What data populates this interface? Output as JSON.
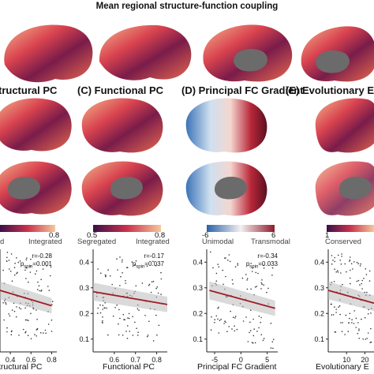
{
  "figure": {
    "title": "Mean regional structure-function coupling"
  },
  "colors": {
    "coupling_low": "#3b0f48",
    "coupling_mid": "#c9324e",
    "coupling_high": "#f6c79a",
    "gradient_low": "#2a61a8",
    "gradient_high": "#8e1b2a",
    "cortex_gray": "#6b6b6b"
  },
  "panels": [
    {
      "letter": "",
      "title": "tructural PC",
      "colorbar": {
        "min_label": "",
        "max_label": "0.8",
        "left_label": "d",
        "right_label": "Integrated"
      },
      "stats": {
        "r": "r=-0.28",
        "p": "p_spin=0.001"
      },
      "xlabel": "tructural PC",
      "xticks": [
        "0.4",
        "0.6",
        "0.8"
      ],
      "yticks": []
    },
    {
      "letter": "(C)",
      "title": "Functional PC",
      "colorbar": {
        "min_label": "0.5",
        "max_label": "0.8",
        "left_label": "Segregated",
        "right_label": "Integrated"
      },
      "stats": {
        "r": "r=-0.17",
        "p": "p_spin=0.037"
      },
      "xlabel": "Functional PC",
      "xticks": [
        "0.6",
        "0.7",
        "0.8"
      ],
      "yticks": [
        "0.4",
        "0.3",
        "0.2",
        "0.1"
      ]
    },
    {
      "letter": "(D)",
      "title": "Principal FC Gradient",
      "colorbar": {
        "min_label": "-6",
        "max_label": "6",
        "left_label": "Unimodal",
        "right_label": "Transmodal"
      },
      "stats": {
        "r": "r=-0.34",
        "p": "p_spin=0.033"
      },
      "xlabel": "Principal FC Gradient",
      "xticks": [
        "-5",
        "0",
        "5"
      ],
      "yticks": [
        "0.4",
        "0.3",
        "0.2",
        "0.1"
      ]
    },
    {
      "letter": "(E)",
      "title": "Evolutionary E",
      "colorbar": {
        "min_label": "1",
        "max_label": "",
        "left_label": "Conserved",
        "right_label": ""
      },
      "stats": {
        "r": "",
        "p": ""
      },
      "xlabel": "Evolutionary E",
      "xticks": [
        "10",
        "20"
      ],
      "yticks": [
        "0.4",
        "0.3",
        "0.2",
        "0.1"
      ]
    }
  ],
  "chart_data": [
    {
      "type": "scatter",
      "title": "",
      "xlabel": "tructural PC",
      "ylabel": "",
      "xlim": [
        0.3,
        0.85
      ],
      "ylim": [
        0.05,
        0.45
      ],
      "fit_line": [
        [
          0.3,
          0.29
        ],
        [
          0.8,
          0.23
        ]
      ],
      "stats": "r=-0.28, p_spin=0.001"
    },
    {
      "type": "scatter",
      "title": "",
      "xlabel": "Functional PC",
      "ylabel": "",
      "xlim": [
        0.5,
        0.85
      ],
      "ylim": [
        0.05,
        0.45
      ],
      "fit_line": [
        [
          0.5,
          0.285
        ],
        [
          0.85,
          0.235
        ]
      ],
      "stats": "r=-0.17, p_spin=0.037"
    },
    {
      "type": "scatter",
      "title": "",
      "xlabel": "Principal FC Gradient",
      "ylabel": "",
      "xlim": [
        -6.5,
        7
      ],
      "ylim": [
        0.05,
        0.45
      ],
      "fit_line": [
        [
          -6,
          0.29
        ],
        [
          6.5,
          0.22
        ]
      ],
      "stats": "r=-0.34, p_spin=0.033"
    },
    {
      "type": "scatter",
      "title": "",
      "xlabel": "Evolutionary E",
      "ylabel": "",
      "xlim": [
        0,
        25
      ],
      "ylim": [
        0.05,
        0.45
      ],
      "fit_line": [
        [
          0,
          0.29
        ],
        [
          25,
          0.24
        ]
      ],
      "stats": ""
    }
  ]
}
